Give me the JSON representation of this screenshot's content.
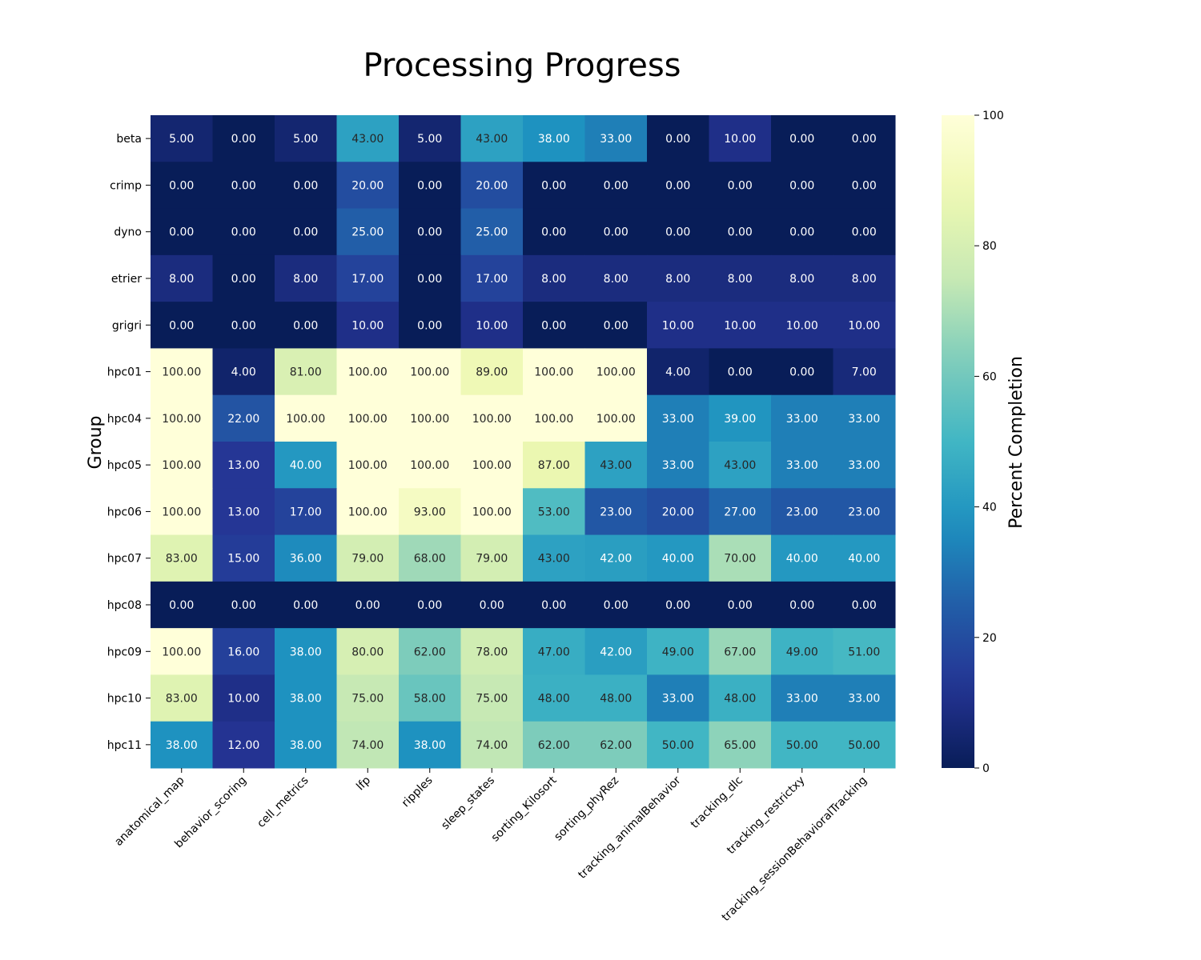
{
  "chart_data": {
    "type": "heatmap",
    "title": "Processing Progress",
    "xlabel": "",
    "ylabel": "Group",
    "colorbar_label": "Percent Completion",
    "colorbar_ticks": [
      "0",
      "20",
      "40",
      "60",
      "80",
      "100"
    ],
    "value_range": [
      0,
      100
    ],
    "colormap": "YlGnBu",
    "rows": [
      "beta",
      "crimp",
      "dyno",
      "etrier",
      "grigri",
      "hpc01",
      "hpc04",
      "hpc05",
      "hpc06",
      "hpc07",
      "hpc08",
      "hpc09",
      "hpc10",
      "hpc11"
    ],
    "columns": [
      "anatomical_map",
      "behavior_scoring",
      "cell_metrics",
      "lfp",
      "ripples",
      "sleep_states",
      "sorting_Kilosort",
      "sorting_phyRez",
      "tracking_animalBehavior",
      "tracking_dlc",
      "tracking_restrictxy",
      "tracking_sessionBehavioralTracking"
    ],
    "values": [
      [
        5,
        0,
        5,
        43,
        5,
        43,
        38,
        33,
        0,
        10,
        0,
        0
      ],
      [
        0,
        0,
        0,
        20,
        0,
        20,
        0,
        0,
        0,
        0,
        0,
        0
      ],
      [
        0,
        0,
        0,
        25,
        0,
        25,
        0,
        0,
        0,
        0,
        0,
        0
      ],
      [
        8,
        0,
        8,
        17,
        0,
        17,
        8,
        8,
        8,
        8,
        8,
        8
      ],
      [
        0,
        0,
        0,
        10,
        0,
        10,
        0,
        0,
        10,
        10,
        10,
        10
      ],
      [
        100,
        4,
        81,
        100,
        100,
        89,
        100,
        100,
        4,
        0,
        0,
        7
      ],
      [
        100,
        22,
        100,
        100,
        100,
        100,
        100,
        100,
        33,
        39,
        33,
        33
      ],
      [
        100,
        13,
        40,
        100,
        100,
        100,
        87,
        43,
        33,
        43,
        33,
        33
      ],
      [
        100,
        13,
        17,
        100,
        93,
        100,
        53,
        23,
        20,
        27,
        23,
        23
      ],
      [
        83,
        15,
        36,
        79,
        68,
        79,
        43,
        42,
        40,
        70,
        40,
        40
      ],
      [
        0,
        0,
        0,
        0,
        0,
        0,
        0,
        0,
        0,
        0,
        0,
        0
      ],
      [
        100,
        16,
        38,
        80,
        62,
        78,
        47,
        42,
        49,
        67,
        49,
        51
      ],
      [
        83,
        10,
        38,
        75,
        58,
        75,
        48,
        48,
        33,
        48,
        33,
        33
      ],
      [
        38,
        12,
        38,
        74,
        38,
        74,
        62,
        62,
        50,
        65,
        50,
        50
      ]
    ],
    "value_format": "2 decimals"
  }
}
